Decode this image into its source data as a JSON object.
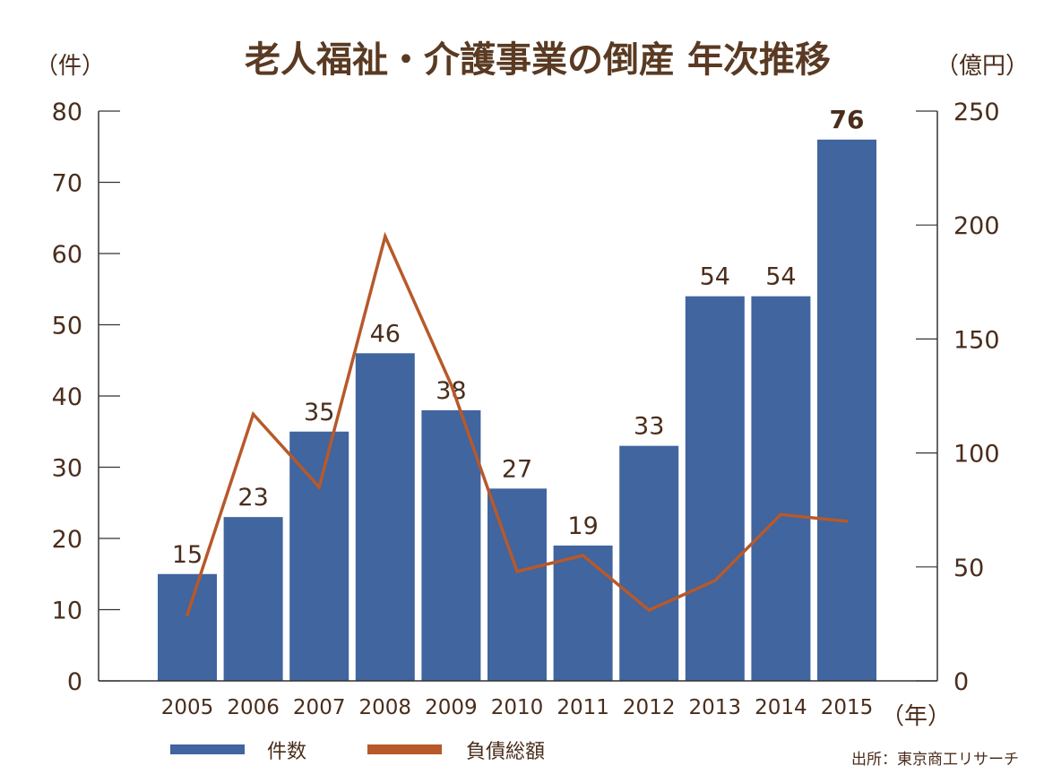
{
  "chart_data": {
    "type": "bar",
    "title": "老人福祉・介護事業の倒産 年次推移",
    "ylabel_left": "（件）",
    "ylabel_right": "（億円）",
    "xlabel": "（年）",
    "categories": [
      "2005",
      "2006",
      "2007",
      "2008",
      "2009",
      "2010",
      "2011",
      "2012",
      "2013",
      "2014",
      "2015"
    ],
    "ylim_left": [
      0,
      80
    ],
    "yticks_left": [
      "0",
      "10",
      "20",
      "30",
      "40",
      "50",
      "60",
      "70",
      "80"
    ],
    "ylim_right": [
      0,
      250
    ],
    "yticks_right": [
      "0",
      "50",
      "100",
      "150",
      "200",
      "250"
    ],
    "series": [
      {
        "name": "件数",
        "type": "bar",
        "axis": "left",
        "color": "#40659f",
        "values": [
          15,
          23,
          35,
          46,
          38,
          27,
          19,
          33,
          54,
          54,
          76
        ],
        "labels": [
          "15",
          "23",
          "35",
          "46",
          "38",
          "27",
          "19",
          "33",
          "54",
          "54",
          "76"
        ]
      },
      {
        "name": "負債総額",
        "type": "line",
        "axis": "right",
        "color": "#b7592a",
        "values": [
          29,
          117,
          85,
          195,
          130,
          48,
          55,
          31,
          44,
          73,
          70
        ]
      }
    ],
    "highlight_label_index": 10,
    "grid": false,
    "legend_position": "bottom-left"
  },
  "source": "出所：東京商工リサーチ",
  "colors": {
    "text": "#4a2d1c",
    "title": "#5a3a22",
    "axis": "#333333"
  }
}
